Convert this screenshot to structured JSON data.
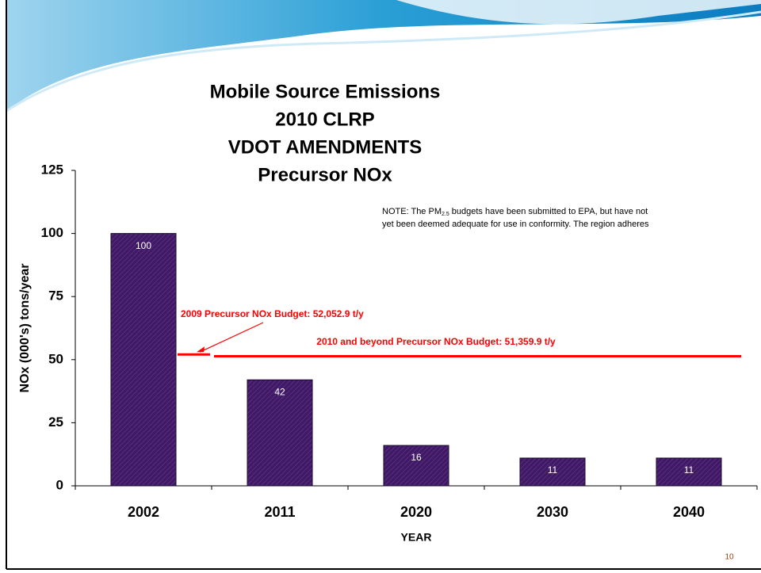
{
  "chart_data": {
    "type": "bar",
    "title": [
      "Mobile Source Emissions",
      "2010 CLRP",
      "VDOT AMENDMENTS",
      "Precursor NOx"
    ],
    "note": [
      "NOTE: The PM",
      "2.5",
      " budgets have been submitted to EPA, but have not",
      "yet been deemed adequate for use in conformity. The region adheres"
    ],
    "x_label": "YEAR",
    "y_label": "NOx (000's) tons/year",
    "categories": [
      "2002",
      "2011",
      "2020",
      "2030",
      "2040"
    ],
    "values": [
      100,
      42,
      16,
      11,
      11
    ],
    "color": "#3f1a63",
    "ylim": [
      0,
      125
    ],
    "yticks": [
      0,
      25,
      50,
      75,
      100,
      125
    ],
    "reference_lines": [
      {
        "label": "2009 Precursor NOx Budget: 52,052.9 t/y",
        "value": 52.0529,
        "color": "#ff0000"
      },
      {
        "label": "2010 and  beyond Precursor NOx Budget: 51,359.9 t/y",
        "value": 51.3599,
        "color": "#ff0000"
      }
    ],
    "page_number": "10"
  }
}
